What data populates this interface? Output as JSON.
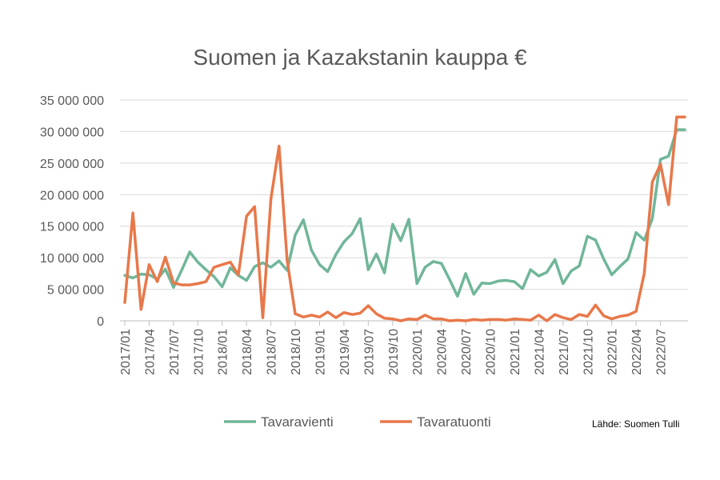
{
  "chart_data": {
    "type": "line",
    "title": "Suomen ja Kazakstanin kauppa €",
    "ylim": [
      0,
      35000000
    ],
    "y_ticks": [
      0,
      5000000,
      10000000,
      15000000,
      20000000,
      25000000,
      30000000,
      35000000
    ],
    "y_tick_labels": [
      "0",
      "5 000 000",
      "10 000 000",
      "15 000 000",
      "20 000 000",
      "25 000 000",
      "30 000 000",
      "35 000 000"
    ],
    "x": [
      "2017/01",
      "2017/02",
      "2017/03",
      "2017/04",
      "2017/05",
      "2017/06",
      "2017/07",
      "2017/08",
      "2017/09",
      "2017/10",
      "2017/11",
      "2017/12",
      "2018/01",
      "2018/02",
      "2018/03",
      "2018/04",
      "2018/05",
      "2018/06",
      "2018/07",
      "2018/08",
      "2018/09",
      "2018/10",
      "2018/11",
      "2018/12",
      "2019/01",
      "2019/02",
      "2019/03",
      "2019/04",
      "2019/05",
      "2019/06",
      "2019/07",
      "2019/08",
      "2019/09",
      "2019/10",
      "2019/11",
      "2019/12",
      "2020/01",
      "2020/02",
      "2020/03",
      "2020/04",
      "2020/05",
      "2020/06",
      "2020/07",
      "2020/08",
      "2020/09",
      "2020/10",
      "2020/11",
      "2020/12",
      "2021/01",
      "2021/02",
      "2021/03",
      "2021/04",
      "2021/05",
      "2021/06",
      "2021/07",
      "2021/08",
      "2021/09",
      "2021/10",
      "2021/11",
      "2021/12",
      "2022/01",
      "2022/02",
      "2022/03",
      "2022/04",
      "2022/05",
      "2022/06",
      "2022/07",
      "2022/08",
      "2022/09",
      "2022/10"
    ],
    "x_tick_labels": [
      "2017/01",
      "2017/04",
      "2017/07",
      "2017/10",
      "2018/01",
      "2018/04",
      "2018/07",
      "2018/10",
      "2019/01",
      "2019/04",
      "2019/07",
      "2019/10",
      "2020/01",
      "2020/04",
      "2020/07",
      "2020/10",
      "2021/01",
      "2021/04",
      "2021/07",
      "2021/10",
      "2022/01",
      "2022/04",
      "2022/07"
    ],
    "series": [
      {
        "name": "Tavaravienti",
        "color": "#70b699",
        "values": [
          7200000,
          6800000,
          7400000,
          7300000,
          6600000,
          8200000,
          5300000,
          8000000,
          10900000,
          9300000,
          8100000,
          7000000,
          5400000,
          8400000,
          7200000,
          6400000,
          8600000,
          9200000,
          8500000,
          9500000,
          8000000,
          13600000,
          16000000,
          11200000,
          8900000,
          7800000,
          10500000,
          12500000,
          13800000,
          16200000,
          8100000,
          10600000,
          7600000,
          15300000,
          12700000,
          16100000,
          5900000,
          8500000,
          9400000,
          9100000,
          6600000,
          3900000,
          7500000,
          4200000,
          6000000,
          5900000,
          6300000,
          6400000,
          6200000,
          5100000,
          8100000,
          7100000,
          7700000,
          9700000,
          5900000,
          7900000,
          8700000,
          13400000,
          12800000,
          9800000,
          7300000,
          8600000,
          9800000,
          14000000,
          12800000,
          16200000,
          25600000,
          26100000,
          30300000,
          30300000
        ]
      },
      {
        "name": "Tavaratuonti",
        "color": "#e8784a",
        "values": [
          2900000,
          17100000,
          1800000,
          8900000,
          6200000,
          10100000,
          6000000,
          5700000,
          5700000,
          5900000,
          6200000,
          8500000,
          8900000,
          9300000,
          7300000,
          16600000,
          18100000,
          500000,
          19300000,
          27700000,
          9600000,
          1100000,
          600000,
          900000,
          600000,
          1400000,
          500000,
          1300000,
          1000000,
          1200000,
          2400000,
          1100000,
          400000,
          300000,
          0,
          300000,
          200000,
          900000,
          300000,
          300000,
          0,
          100000,
          0,
          200000,
          100000,
          200000,
          200000,
          100000,
          300000,
          200000,
          100000,
          900000,
          0,
          1000000,
          500000,
          200000,
          1000000,
          700000,
          2500000,
          800000,
          300000,
          700000,
          900000,
          1500000,
          7500000,
          22000000,
          24800000,
          18400000,
          32300000,
          32300000
        ]
      }
    ]
  },
  "source_note": "Lähde: Suomen Tulli"
}
